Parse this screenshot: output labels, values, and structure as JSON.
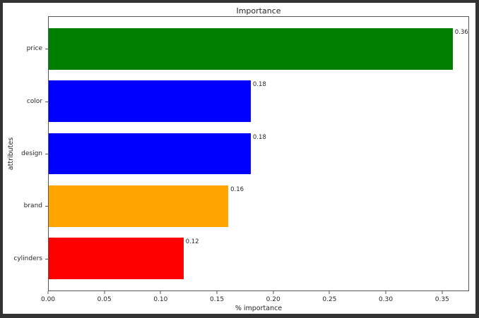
{
  "chart_data": {
    "type": "bar",
    "orientation": "horizontal",
    "title": "Importance",
    "xlabel": "% importance",
    "ylabel": "attributes",
    "categories": [
      "price",
      "color",
      "design",
      "brand",
      "cylinders"
    ],
    "values": [
      0.36,
      0.18,
      0.18,
      0.16,
      0.12
    ],
    "value_labels": [
      "0.36",
      "0.18",
      "0.18",
      "0.16",
      "0.12"
    ],
    "bar_colors": [
      "#008000",
      "#0000ff",
      "#0000ff",
      "#ffa500",
      "#ff0000"
    ],
    "xlim": [
      0,
      0.374
    ],
    "xticks": [
      0.0,
      0.05,
      0.1,
      0.15,
      0.2,
      0.25,
      0.3,
      0.35
    ],
    "xtick_labels": [
      "0.00",
      "0.05",
      "0.10",
      "0.15",
      "0.20",
      "0.25",
      "0.30",
      "0.35"
    ],
    "grid": false,
    "legend": "none",
    "background_color": "#ffffff",
    "frame_color": "#333333",
    "spine_color": "#555555",
    "text_color": "#262626"
  }
}
